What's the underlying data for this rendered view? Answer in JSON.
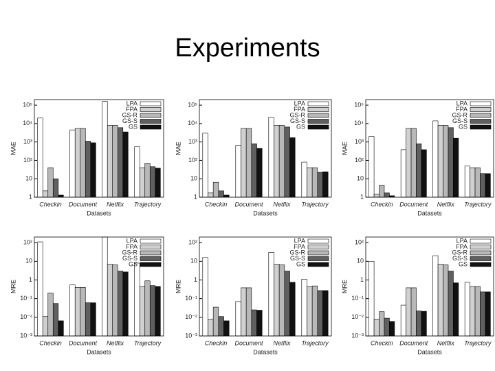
{
  "title": "Experiments",
  "chart_data": [
    {
      "type": "bar",
      "ylabel": "MAE",
      "xlabel": "Datasets",
      "log_scale": true,
      "legend": "upper right",
      "categories": [
        "Checkin",
        "Document",
        "Netflix",
        "Trajectory"
      ],
      "ylim": [
        1,
        200000
      ],
      "yticks": [
        1,
        10,
        {
          "value": 100,
          "label": "10²"
        },
        {
          "value": 1000,
          "label": "10³"
        },
        {
          "value": 10000,
          "label": "10⁴"
        },
        {
          "value": 100000,
          "label": "10⁵"
        }
      ],
      "series": [
        {
          "name": "LPA",
          "color": "#ffffff",
          "values": [
            20000,
            4500,
            160000,
            550
          ]
        },
        {
          "name": "FPA",
          "color": "#d0d0d0",
          "values": [
            2.2,
            5500,
            8000,
            40
          ]
        },
        {
          "name": "GS-R",
          "color": "#b8b8b8",
          "values": [
            40,
            5500,
            8000,
            70
          ]
        },
        {
          "name": "GS-S",
          "color": "#606060",
          "values": [
            10,
            1100,
            6000,
            45
          ]
        },
        {
          "name": "GS",
          "color": "#111111",
          "values": [
            1.3,
            900,
            3500,
            38
          ]
        }
      ]
    },
    {
      "type": "bar",
      "ylabel": "MAE",
      "xlabel": "Datasets",
      "log_scale": true,
      "legend": "upper right",
      "categories": [
        "Checkin",
        "Document",
        "Netflix",
        "Trajectory"
      ],
      "ylim": [
        1,
        200000
      ],
      "yticks": [
        1,
        10,
        {
          "value": 100,
          "label": "10²"
        },
        {
          "value": 1000,
          "label": "10³"
        },
        {
          "value": 10000,
          "label": "10⁴"
        },
        {
          "value": 100000,
          "label": "10⁵"
        }
      ],
      "series": [
        {
          "name": "LPA",
          "color": "#ffffff",
          "values": [
            3000,
            650,
            22000,
            80
          ]
        },
        {
          "name": "FPA",
          "color": "#d0d0d0",
          "values": [
            1.7,
            5500,
            8000,
            40
          ]
        },
        {
          "name": "GS-R",
          "color": "#b8b8b8",
          "values": [
            6.5,
            5500,
            8000,
            40
          ]
        },
        {
          "name": "GS-S",
          "color": "#606060",
          "values": [
            2.2,
            800,
            6500,
            23
          ]
        },
        {
          "name": "GS",
          "color": "#111111",
          "values": [
            1.3,
            450,
            1700,
            24
          ]
        }
      ]
    },
    {
      "type": "bar",
      "ylabel": "MAE",
      "xlabel": "Datasets",
      "log_scale": true,
      "legend": "upper right",
      "categories": [
        "Checkin",
        "Document",
        "Netflix",
        "Trajectory"
      ],
      "ylim": [
        1,
        200000
      ],
      "yticks": [
        1,
        10,
        {
          "value": 100,
          "label": "10²"
        },
        {
          "value": 1000,
          "label": "10³"
        },
        {
          "value": 10000,
          "label": "10⁴"
        },
        {
          "value": 100000,
          "label": "10⁵"
        }
      ],
      "series": [
        {
          "name": "LPA",
          "color": "#ffffff",
          "values": [
            2000,
            380,
            14000,
            50
          ]
        },
        {
          "name": "FPA",
          "color": "#d0d0d0",
          "values": [
            1.5,
            5500,
            8000,
            40
          ]
        },
        {
          "name": "GS-R",
          "color": "#b8b8b8",
          "values": [
            4.5,
            5500,
            8000,
            40
          ]
        },
        {
          "name": "GS-S",
          "color": "#606060",
          "values": [
            1.7,
            800,
            6000,
            19
          ]
        },
        {
          "name": "GS",
          "color": "#111111",
          "values": [
            1.2,
            380,
            1600,
            19
          ]
        }
      ]
    },
    {
      "type": "bar",
      "ylabel": "MRE",
      "xlabel": "Datasets",
      "log_scale": true,
      "legend": "upper right",
      "categories": [
        "Checkin",
        "Document",
        "Netflix",
        "Trajectory"
      ],
      "ylim": [
        0.001,
        200
      ],
      "yticks": [
        {
          "value": 0.001,
          "label": "10⁻³"
        },
        {
          "value": 0.01,
          "label": "10⁻²"
        },
        {
          "value": 0.1,
          "label": "10⁻¹"
        },
        1,
        10,
        {
          "value": 100,
          "label": "10²"
        }
      ],
      "series": [
        {
          "name": "LPA",
          "color": "#ffffff",
          "values": [
            110,
            0.55,
            200,
            8
          ]
        },
        {
          "name": "FPA",
          "color": "#d0d0d0",
          "values": [
            0.011,
            0.4,
            7,
            0.45
          ]
        },
        {
          "name": "GS-R",
          "color": "#b8b8b8",
          "values": [
            0.2,
            0.4,
            6.5,
            0.9
          ]
        },
        {
          "name": "GS-S",
          "color": "#606060",
          "values": [
            0.055,
            0.06,
            3,
            0.5
          ]
        },
        {
          "name": "GS",
          "color": "#111111",
          "values": [
            0.0065,
            0.06,
            2.7,
            0.45
          ]
        }
      ]
    },
    {
      "type": "bar",
      "ylabel": "MRE",
      "xlabel": "Datasets",
      "log_scale": true,
      "legend": "upper right",
      "categories": [
        "Checkin",
        "Document",
        "Netflix",
        "Trajectory"
      ],
      "ylim": [
        0.001,
        200
      ],
      "yticks": [
        {
          "value": 0.001,
          "label": "10⁻³"
        },
        {
          "value": 0.01,
          "label": "10⁻²"
        },
        {
          "value": 0.1,
          "label": "10⁻¹"
        },
        1,
        10,
        {
          "value": 100,
          "label": "10²"
        }
      ],
      "series": [
        {
          "name": "LPA",
          "color": "#ffffff",
          "values": [
            16,
            0.07,
            30,
            1.1
          ]
        },
        {
          "name": "FPA",
          "color": "#d0d0d0",
          "values": [
            0.008,
            0.38,
            7,
            0.45
          ]
        },
        {
          "name": "GS-R",
          "color": "#b8b8b8",
          "values": [
            0.035,
            0.38,
            6.5,
            0.48
          ]
        },
        {
          "name": "GS-S",
          "color": "#606060",
          "values": [
            0.011,
            0.025,
            3,
            0.27
          ]
        },
        {
          "name": "GS",
          "color": "#111111",
          "values": [
            0.0065,
            0.024,
            0.75,
            0.27
          ]
        }
      ]
    },
    {
      "type": "bar",
      "ylabel": "MRE",
      "xlabel": "Datasets",
      "log_scale": true,
      "legend": "upper right",
      "categories": [
        "Checkin",
        "Document",
        "Netflix",
        "Trajectory"
      ],
      "ylim": [
        0.001,
        200
      ],
      "yticks": [
        {
          "value": 0.001,
          "label": "10⁻³"
        },
        {
          "value": 0.01,
          "label": "10⁻²"
        },
        {
          "value": 0.1,
          "label": "10⁻¹"
        },
        1,
        10,
        {
          "value": 100,
          "label": "10²"
        }
      ],
      "series": [
        {
          "name": "LPA",
          "color": "#ffffff",
          "values": [
            10,
            0.045,
            20,
            0.75
          ]
        },
        {
          "name": "FPA",
          "color": "#d0d0d0",
          "values": [
            0.008,
            0.38,
            7,
            0.45
          ]
        },
        {
          "name": "GS-R",
          "color": "#b8b8b8",
          "values": [
            0.02,
            0.38,
            6.5,
            0.45
          ]
        },
        {
          "name": "GS-S",
          "color": "#606060",
          "values": [
            0.009,
            0.022,
            3,
            0.23
          ]
        },
        {
          "name": "GS",
          "color": "#111111",
          "values": [
            0.006,
            0.021,
            0.7,
            0.23
          ]
        }
      ]
    }
  ]
}
